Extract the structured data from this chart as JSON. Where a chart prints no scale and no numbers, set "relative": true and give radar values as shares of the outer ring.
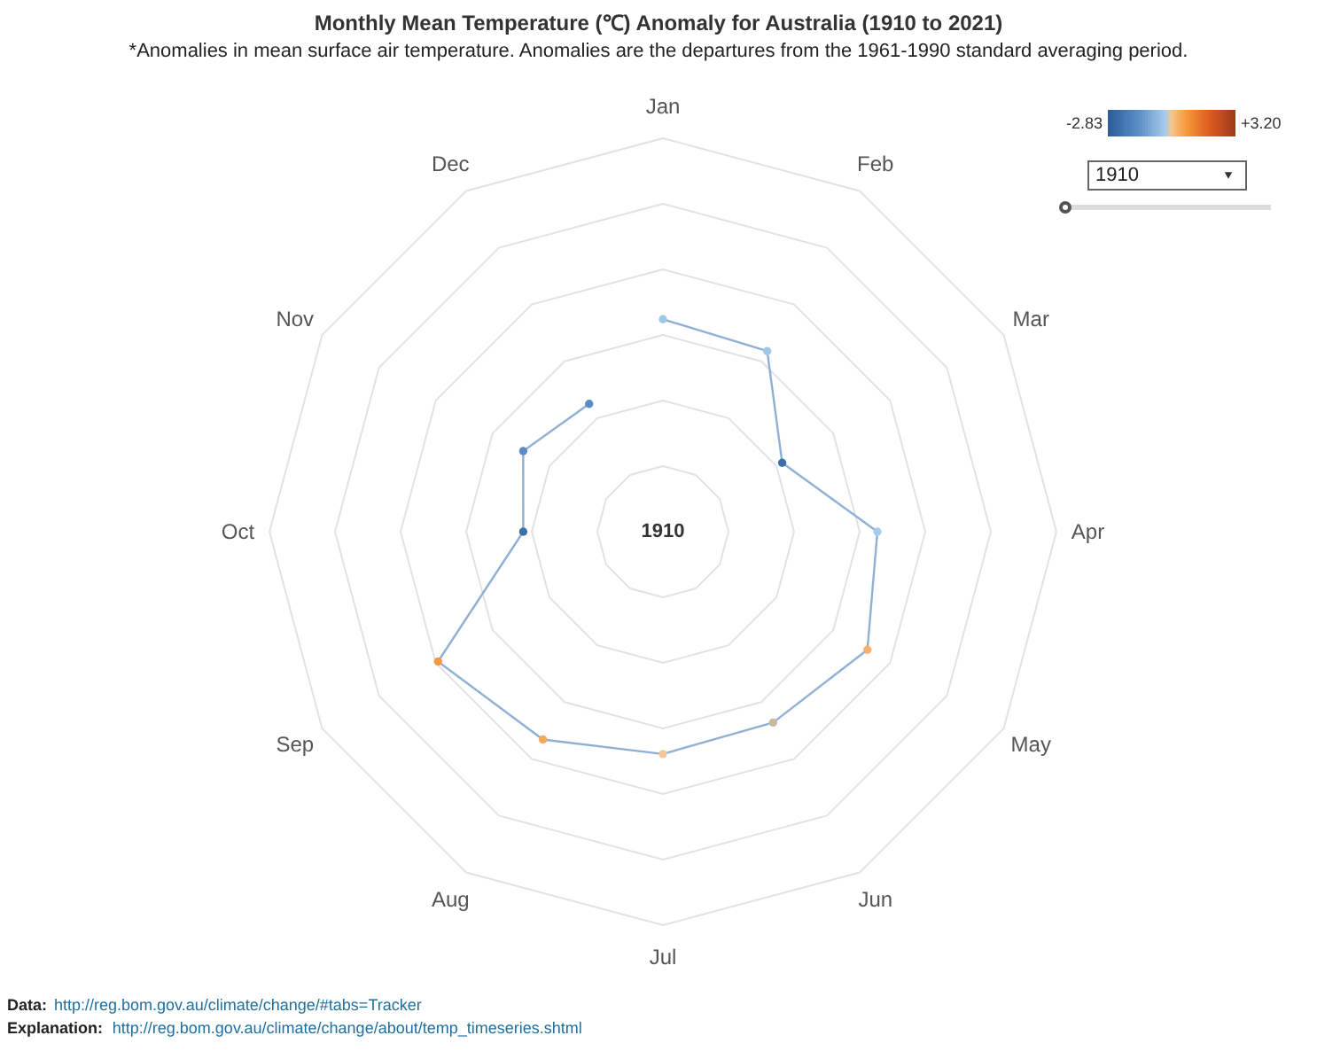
{
  "chart_data": {
    "type": "radar",
    "title": "Monthly Mean Temperature (℃) Anomaly for Australia (1910 to 2021)",
    "subtitle": "*Anomalies in mean surface air temperature. Anomalies are the departures from the 1961-1990 standard averaging period.",
    "categories": [
      "Jan",
      "Feb",
      "Mar",
      "Apr",
      "May",
      "Jun",
      "Jul",
      "Aug",
      "Sep",
      "Oct",
      "Nov",
      "Dec"
    ],
    "relative": true,
    "series": [
      {
        "color": "#8fb0d4",
        "values": [
          0.54,
          0.53,
          0.35,
          0.545,
          0.6,
          0.56,
          0.565,
          0.61,
          0.66,
          0.355,
          0.41,
          0.375
        ],
        "colors": [
          "#9ec8e6",
          "#9ec8e6",
          "#3f6fa8",
          "#a5cde9",
          "#f6b26b",
          "#c9b8a0",
          "#f3c79a",
          "#f4a95c",
          "#f09a45",
          "#3f6fa8",
          "#5b8cc4",
          "#5b8cc4"
        ]
      }
    ],
    "marker": "circle",
    "grid": true,
    "annotations": [
      "1910",
      "1910",
      "-2.83",
      "+3.20",
      "Data: http://reg.bom.gov.au/climate/change/#tabs=Tracker",
      "Explanation: http://reg.bom.gov.au/climate/change/about/temp_timeseries.shtml"
    ]
  }
}
